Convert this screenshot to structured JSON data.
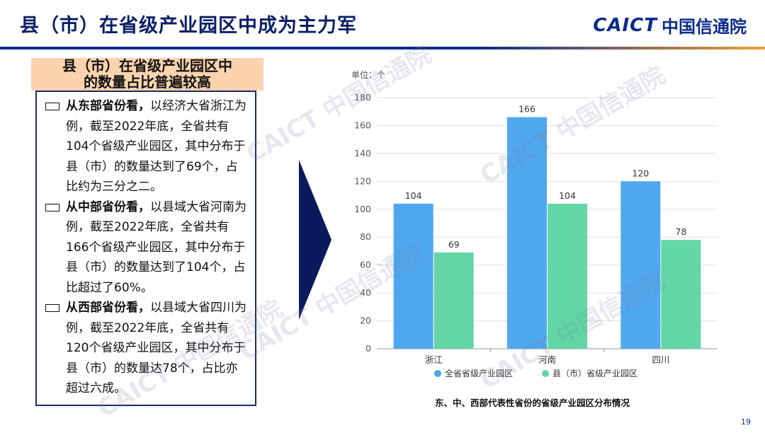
{
  "header": {
    "title": "县（市）在省级产业园区中成为主力军",
    "brand_latin": "CAICT",
    "brand_cn": "中国信通院"
  },
  "panel": {
    "heading_line1": "县（市）在省级产业园区中",
    "heading_line2": "的数量占比普遍较高",
    "items": [
      {
        "bold": "从东部省份看，",
        "text": "以经济大省浙江为例，截至2022年底，全省共有104个省级产业园区，其中分布于县（市）的数量达到了69个，占比约为三分之二。"
      },
      {
        "bold": "从中部省份看，",
        "text": "以县域大省河南为例，截至2022年底，全省共有166个省级产业园区，其中分布于县（市）的数量达到了104个，占比超过了60%。"
      },
      {
        "bold": "从西部省份看，",
        "text": "以县域大省四川为例，截至2022年底，全省共有120个省级产业园区，其中分布于县（市）的数量达78个，占比亦超过六成。"
      }
    ]
  },
  "chart_data": {
    "type": "bar",
    "unit_label": "单位：个",
    "categories": [
      "浙江",
      "河南",
      "四川"
    ],
    "series": [
      {
        "name": "全省省级产业园区",
        "values": [
          104,
          166,
          120
        ],
        "color": "#4fa7ef"
      },
      {
        "name": "县（市）省级产业园区",
        "values": [
          69,
          104,
          78
        ],
        "color": "#62d6a5"
      }
    ],
    "ylim": [
      0,
      180
    ],
    "yticks": [
      0,
      20,
      40,
      60,
      80,
      100,
      120,
      140,
      160,
      180
    ],
    "grid": true,
    "legend": "bottom",
    "caption": "东、中、西部代表性省份的省级产业园区分布情况"
  },
  "watermark": "CAICT 中国信通院",
  "page_number": "19",
  "colors": {
    "navy": "#0b2b8c",
    "arrow": "#0a1a5c",
    "heading_bg": "#fbd3ad"
  }
}
